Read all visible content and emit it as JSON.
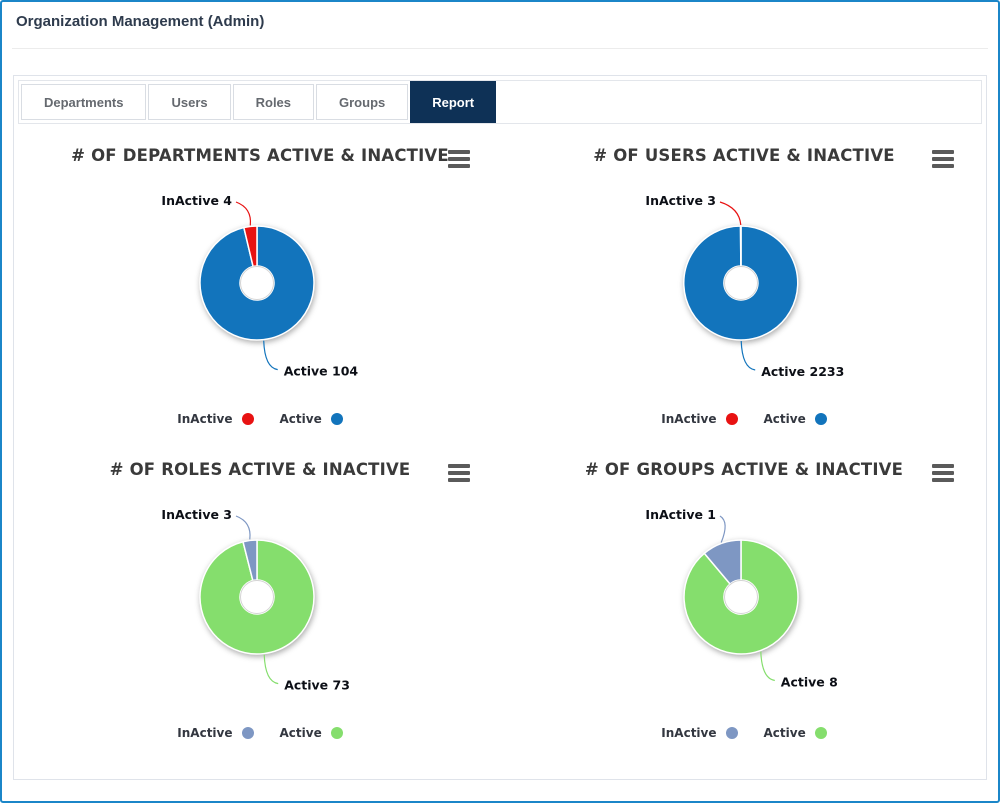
{
  "header": {
    "title": "Organization Management (Admin)"
  },
  "tabs": [
    {
      "label": "Departments",
      "active": false
    },
    {
      "label": "Users",
      "active": false
    },
    {
      "label": "Roles",
      "active": false
    },
    {
      "label": "Groups",
      "active": false
    },
    {
      "label": "Report",
      "active": true
    }
  ],
  "chart_data": [
    {
      "type": "pie",
      "subtype": "donut",
      "title": "# OF DEPARTMENTS ACTIVE & INACTIVE",
      "slices": [
        {
          "name": "InActive",
          "value": 4,
          "color": "#e81212"
        },
        {
          "name": "Active",
          "value": 104,
          "color": "#1274bc"
        }
      ],
      "data_labels": [
        "InActive 4",
        "Active 104"
      ],
      "legend": {
        "position": "bottom",
        "items": [
          "InActive",
          "Active"
        ]
      }
    },
    {
      "type": "pie",
      "subtype": "donut",
      "title": "# OF USERS ACTIVE & INACTIVE",
      "slices": [
        {
          "name": "InActive",
          "value": 3,
          "color": "#e81212"
        },
        {
          "name": "Active",
          "value": 2233,
          "color": "#1274bc"
        }
      ],
      "data_labels": [
        "InActive 3",
        "Active 2233"
      ],
      "legend": {
        "position": "bottom",
        "items": [
          "InActive",
          "Active"
        ]
      }
    },
    {
      "type": "pie",
      "subtype": "donut",
      "title": "# OF ROLES ACTIVE & INACTIVE",
      "slices": [
        {
          "name": "InActive",
          "value": 3,
          "color": "#7e97c3"
        },
        {
          "name": "Active",
          "value": 73,
          "color": "#85de6d"
        }
      ],
      "data_labels": [
        "InActive 3",
        "Active 73"
      ],
      "legend": {
        "position": "bottom",
        "items": [
          "InActive",
          "Active"
        ]
      }
    },
    {
      "type": "pie",
      "subtype": "donut",
      "title": "# OF GROUPS ACTIVE & INACTIVE",
      "slices": [
        {
          "name": "InActive",
          "value": 1,
          "color": "#7e97c3"
        },
        {
          "name": "Active",
          "value": 8,
          "color": "#85de6d"
        }
      ],
      "data_labels": [
        "InActive 1",
        "Active 8"
      ],
      "legend": {
        "position": "bottom",
        "items": [
          "InActive",
          "Active"
        ]
      }
    }
  ],
  "icons": {
    "chart_menu": "hamburger-menu-icon"
  }
}
